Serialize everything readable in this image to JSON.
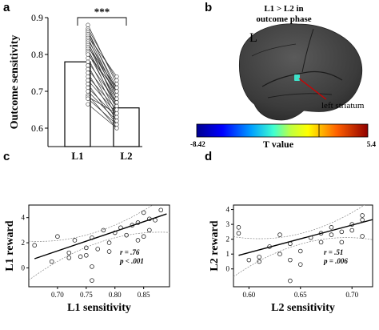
{
  "panels": {
    "a": "a",
    "b": "b",
    "c": "c",
    "d": "d"
  },
  "chart_data": [
    {
      "type": "bar",
      "panel": "a",
      "categories": [
        "L1",
        "L2"
      ],
      "values": [
        0.78,
        0.655
      ],
      "ylabel": "Outcome sensitivity",
      "ylim": [
        0.55,
        0.9
      ],
      "yticks": [
        "0.6",
        "0.7",
        "0.8",
        "0.9"
      ],
      "significance": "***",
      "paired_points": [
        [
          0.88,
          0.72
        ],
        [
          0.87,
          0.73
        ],
        [
          0.865,
          0.7
        ],
        [
          0.86,
          0.71
        ],
        [
          0.855,
          0.69
        ],
        [
          0.85,
          0.74
        ],
        [
          0.845,
          0.68
        ],
        [
          0.84,
          0.7
        ],
        [
          0.835,
          0.66
        ],
        [
          0.83,
          0.69
        ],
        [
          0.825,
          0.67
        ],
        [
          0.82,
          0.71
        ],
        [
          0.815,
          0.65
        ],
        [
          0.81,
          0.68
        ],
        [
          0.805,
          0.66
        ],
        [
          0.8,
          0.7
        ],
        [
          0.79,
          0.64
        ],
        [
          0.78,
          0.67
        ],
        [
          0.77,
          0.63
        ],
        [
          0.76,
          0.66
        ],
        [
          0.75,
          0.62
        ],
        [
          0.74,
          0.65
        ],
        [
          0.73,
          0.64
        ],
        [
          0.72,
          0.61
        ],
        [
          0.71,
          0.63
        ],
        [
          0.7,
          0.62
        ],
        [
          0.69,
          0.6
        ],
        [
          0.685,
          0.64
        ],
        [
          0.68,
          0.61
        ],
        [
          0.665,
          0.6
        ]
      ]
    },
    {
      "type": "brain",
      "panel": "b",
      "title_line1": "L1 > L2 in",
      "title_line2": "outcome phase",
      "hemisphere_label": "L",
      "annotation": "left striatum",
      "colorbar_min": "-8.42",
      "colorbar_max": "5.4",
      "colorbar_label": "T value"
    },
    {
      "type": "scatter",
      "panel": "c",
      "xlabel": "L1 sensitivity",
      "ylabel": "L1 reward",
      "xlim": [
        0.65,
        0.895
      ],
      "ylim": [
        -1.5,
        5
      ],
      "xticks": [
        "0.70",
        "0.75",
        "0.80",
        "0.85"
      ],
      "xtick_values": [
        0.7,
        0.75,
        0.8,
        0.85
      ],
      "yticks": [
        "0",
        "2",
        "4"
      ],
      "ytick_values": [
        0,
        2,
        4
      ],
      "stat_r": "r = .76",
      "stat_p": "p < .001",
      "fit": {
        "intercept": -9.5,
        "slope": 15.5
      },
      "points": [
        [
          0.66,
          1.8
        ],
        [
          0.69,
          0.5
        ],
        [
          0.7,
          2.5
        ],
        [
          0.72,
          0.8
        ],
        [
          0.72,
          1.2
        ],
        [
          0.73,
          2.2
        ],
        [
          0.74,
          0.9
        ],
        [
          0.75,
          1.6
        ],
        [
          0.75,
          1.0
        ],
        [
          0.76,
          -1.0
        ],
        [
          0.76,
          2.4
        ],
        [
          0.76,
          0.1
        ],
        [
          0.77,
          1.5
        ],
        [
          0.78,
          3.0
        ],
        [
          0.79,
          2.0
        ],
        [
          0.79,
          1.3
        ],
        [
          0.8,
          2.8
        ],
        [
          0.81,
          3.2
        ],
        [
          0.82,
          2.6
        ],
        [
          0.83,
          3.4
        ],
        [
          0.84,
          3.6
        ],
        [
          0.84,
          2.2
        ],
        [
          0.85,
          4.4
        ],
        [
          0.85,
          2.5
        ],
        [
          0.86,
          3.9
        ],
        [
          0.86,
          3.0
        ],
        [
          0.87,
          3.8
        ],
        [
          0.88,
          4.6
        ]
      ]
    },
    {
      "type": "scatter",
      "panel": "d",
      "xlabel": "L2 sensitivity",
      "ylabel": "L2 reward",
      "xlim": [
        0.585,
        0.72
      ],
      "ylim": [
        -1.2,
        4.3
      ],
      "xticks": [
        "0.60",
        "0.65",
        "0.70"
      ],
      "xtick_values": [
        0.6,
        0.65,
        0.7
      ],
      "yticks": [
        "0",
        "1",
        "2",
        "3",
        "4"
      ],
      "ytick_values": [
        0,
        1,
        2,
        3,
        4
      ],
      "stat_r": "r = .51",
      "stat_p": "p = .006",
      "fit": {
        "intercept": -10.0,
        "slope": 18.5
      },
      "points": [
        [
          0.59,
          2.8
        ],
        [
          0.59,
          2.4
        ],
        [
          0.6,
          0.6
        ],
        [
          0.61,
          0.5
        ],
        [
          0.61,
          0.8
        ],
        [
          0.62,
          1.5
        ],
        [
          0.63,
          1.0
        ],
        [
          0.63,
          2.3
        ],
        [
          0.64,
          0.6
        ],
        [
          0.64,
          -0.8
        ],
        [
          0.64,
          1.7
        ],
        [
          0.65,
          0.3
        ],
        [
          0.65,
          1.2
        ],
        [
          0.66,
          2.1
        ],
        [
          0.67,
          1.8
        ],
        [
          0.67,
          2.4
        ],
        [
          0.68,
          2.3
        ],
        [
          0.68,
          2.8
        ],
        [
          0.69,
          2.5
        ],
        [
          0.69,
          1.8
        ],
        [
          0.7,
          3.0
        ],
        [
          0.7,
          2.6
        ],
        [
          0.71,
          3.6
        ],
        [
          0.71,
          2.2
        ],
        [
          0.71,
          3.3
        ]
      ]
    }
  ]
}
